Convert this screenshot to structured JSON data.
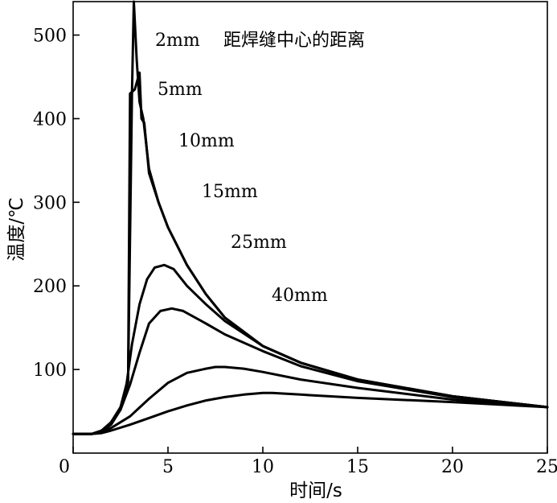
{
  "chart_data": {
    "type": "line",
    "title": "",
    "xlabel": "时间/s",
    "ylabel": "温度/℃",
    "xlim": [
      0,
      25
    ],
    "ylim": [
      0,
      540
    ],
    "xticks": [
      0,
      5,
      10,
      15,
      20,
      25
    ],
    "yticks": [
      100,
      200,
      300,
      400,
      500
    ],
    "grid": false,
    "legend_title": "距焊缝中心的距离",
    "series": [
      {
        "name": "2mm",
        "x": [
          0,
          1,
          1.5,
          2,
          2.5,
          2.9,
          3.1,
          3.2,
          3.35,
          3.5,
          3.7,
          4,
          4.5,
          5,
          6,
          7,
          8,
          10,
          12,
          15,
          20,
          25
        ],
        "y": [
          23,
          23,
          27,
          37,
          55,
          90,
          430,
          540,
          470,
          420,
          400,
          340,
          300,
          270,
          225,
          190,
          162,
          128,
          108,
          88,
          68,
          55
        ]
      },
      {
        "name": "5mm",
        "x": [
          0,
          1,
          1.5,
          2,
          2.5,
          2.9,
          3.0,
          3.25,
          3.5,
          3.6,
          3.75,
          4,
          4.5,
          5,
          6,
          7,
          8,
          10,
          12,
          15,
          20,
          25
        ],
        "y": [
          23,
          23,
          26,
          35,
          52,
          85,
          430,
          435,
          455,
          400,
          395,
          335,
          300,
          270,
          225,
          190,
          162,
          128,
          108,
          88,
          68,
          55
        ]
      },
      {
        "name": "10mm",
        "x": [
          0,
          1,
          1.5,
          2,
          2.5,
          2.8,
          3.1,
          3.5,
          3.9,
          4.3,
          4.8,
          5.3,
          6,
          7,
          8,
          10,
          12,
          15,
          20,
          25
        ],
        "y": [
          23,
          23,
          27,
          36,
          55,
          80,
          130,
          178,
          208,
          222,
          225,
          220,
          200,
          178,
          158,
          128,
          108,
          88,
          68,
          55
        ]
      },
      {
        "name": "15mm",
        "x": [
          0,
          1,
          1.5,
          2,
          2.5,
          3,
          3.5,
          4,
          4.6,
          5.2,
          5.8,
          7,
          8,
          10,
          12,
          15,
          20,
          25
        ],
        "y": [
          23,
          23,
          26,
          34,
          52,
          82,
          120,
          155,
          170,
          173,
          170,
          155,
          142,
          122,
          104,
          86,
          67,
          55
        ]
      },
      {
        "name": "25mm",
        "x": [
          0,
          1,
          1.5,
          2,
          3,
          4,
          5,
          6,
          7,
          7.5,
          8,
          9,
          10,
          12,
          15,
          20,
          25
        ],
        "y": [
          23,
          23,
          25,
          30,
          44,
          65,
          84,
          96,
          101,
          103,
          103,
          101,
          97,
          88,
          78,
          64,
          55
        ]
      },
      {
        "name": "40mm",
        "x": [
          0,
          1,
          1.5,
          2,
          3,
          4,
          5,
          6,
          7,
          8,
          9,
          10,
          10.5,
          12,
          15,
          20,
          25
        ],
        "y": [
          23,
          23,
          24,
          27,
          34,
          42,
          50,
          57,
          63,
          67,
          70,
          72,
          72,
          70,
          66,
          61,
          55
        ]
      }
    ]
  }
}
